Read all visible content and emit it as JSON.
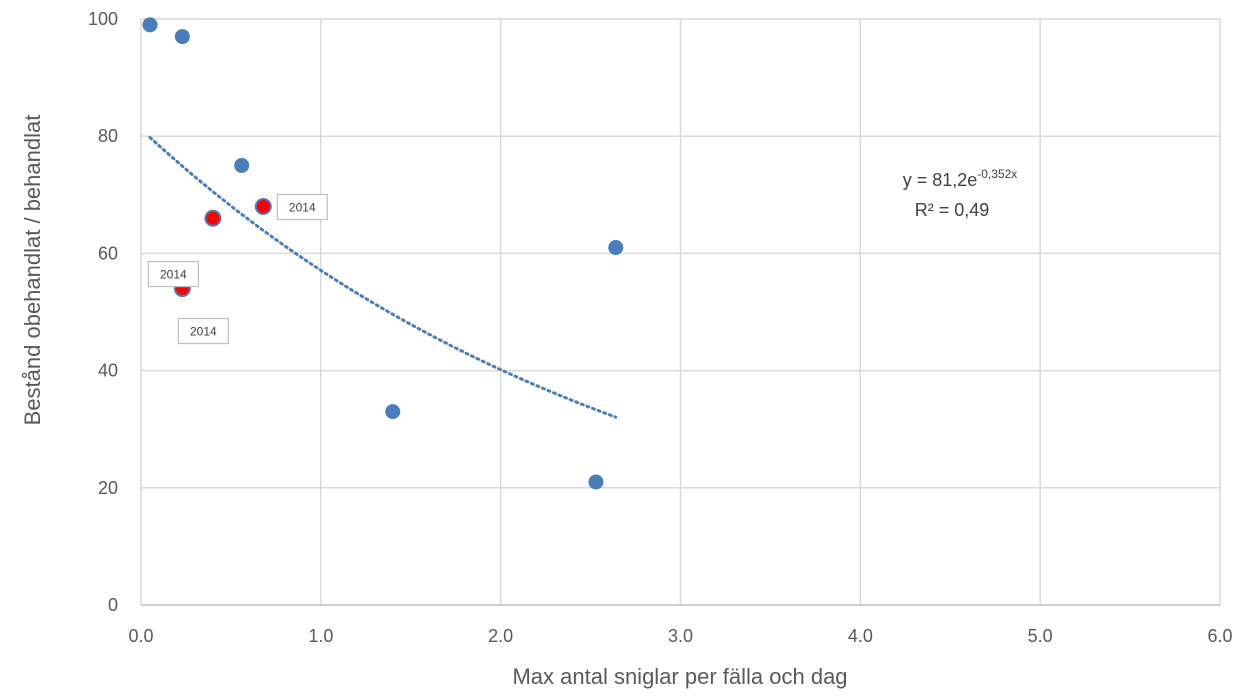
{
  "chart_data": {
    "type": "scatter",
    "title": "",
    "xlabel": "Max antal sniglar per fälla och dag",
    "ylabel": "Bestånd obehandlat / behandlat",
    "xlim": [
      0,
      6
    ],
    "ylim": [
      0,
      100
    ],
    "x_ticks": [
      "0.0",
      "1.0",
      "2.0",
      "3.0",
      "4.0",
      "5.0",
      "6.0"
    ],
    "y_ticks": [
      "0",
      "20",
      "40",
      "60",
      "80",
      "100"
    ],
    "grid": true,
    "legend": "none",
    "series": [
      {
        "color": "#4a7ebb",
        "points": [
          {
            "x": 0.05,
            "y": 99
          },
          {
            "x": 0.23,
            "y": 97
          },
          {
            "x": 0.56,
            "y": 75
          },
          {
            "x": 1.4,
            "y": 33
          },
          {
            "x": 2.53,
            "y": 21
          },
          {
            "x": 2.64,
            "y": 61
          }
        ]
      },
      {
        "color": "#ff0000",
        "points": [
          {
            "x": 0.23,
            "y": 54,
            "label": "2014"
          },
          {
            "x": 0.4,
            "y": 66,
            "label": "2014"
          },
          {
            "x": 0.68,
            "y": 68,
            "label": "2014"
          }
        ]
      }
    ],
    "trendline": {
      "type": "exponential",
      "a": 81.2,
      "b": -0.352,
      "x_range": [
        0.05,
        2.64
      ],
      "color": "#4a7ebb",
      "style": "dotted",
      "equation_base": "y = 81,2e",
      "equation_exponent": "-0,352x",
      "r2_text": "R² = 0,49"
    }
  }
}
